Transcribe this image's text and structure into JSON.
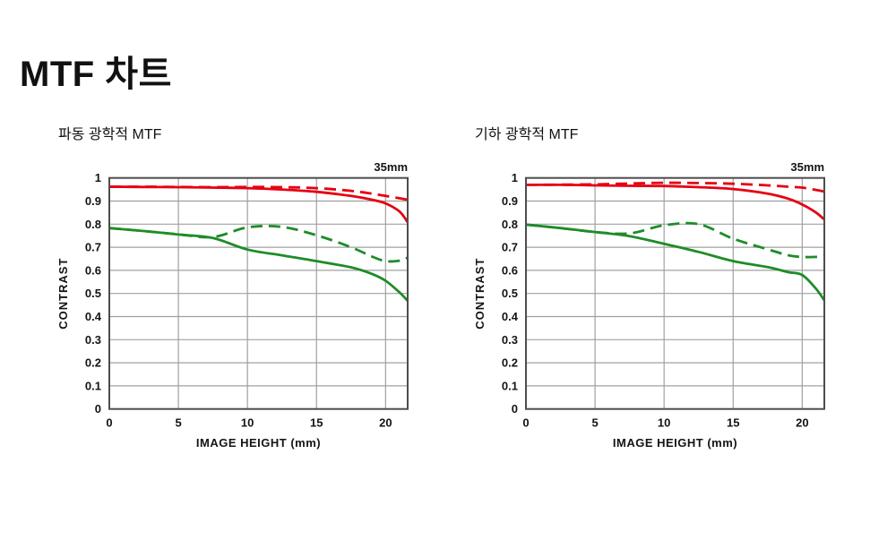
{
  "page": {
    "title": "MTF 차트"
  },
  "colors": {
    "red": "#e60012",
    "green": "#1e8c28",
    "grid": "#a0a0a0",
    "axis_border": "#4d4d4d",
    "text": "#141414"
  },
  "chart_data": [
    {
      "type": "line",
      "title": "파동 광학적 MTF",
      "corner_label": "35mm",
      "xlabel": "IMAGE HEIGHT (mm)",
      "ylabel": "CONTRAST",
      "xlim": [
        0,
        21.6
      ],
      "ylim": [
        0,
        1
      ],
      "xticks": [
        0,
        5,
        10,
        15,
        20
      ],
      "ytick_step": 0.1,
      "grid": true,
      "legend": "none",
      "x": [
        0,
        2.5,
        5,
        7.5,
        10,
        12.5,
        15,
        17.5,
        19,
        20,
        21,
        21.6
      ],
      "series": [
        {
          "name": "red-solid",
          "color_key": "red",
          "dash": false,
          "values": [
            0.962,
            0.961,
            0.96,
            0.958,
            0.956,
            0.95,
            0.94,
            0.922,
            0.906,
            0.89,
            0.855,
            0.808
          ]
        },
        {
          "name": "red-dashed",
          "color_key": "red",
          "dash": true,
          "values": [
            0.962,
            0.962,
            0.961,
            0.96,
            0.961,
            0.96,
            0.956,
            0.944,
            0.932,
            0.922,
            0.912,
            0.906
          ]
        },
        {
          "name": "green-solid",
          "color_key": "green",
          "dash": false,
          "values": [
            0.783,
            0.77,
            0.755,
            0.74,
            0.69,
            0.665,
            0.64,
            0.613,
            0.585,
            0.555,
            0.505,
            0.468
          ]
        },
        {
          "name": "green-dashed",
          "color_key": "green",
          "dash": true,
          "values": [
            0.783,
            0.77,
            0.756,
            0.744,
            0.786,
            0.788,
            0.752,
            0.7,
            0.66,
            0.64,
            0.642,
            0.655
          ]
        }
      ]
    },
    {
      "type": "line",
      "title": "기하 광학적 MTF",
      "corner_label": "35mm",
      "xlabel": "IMAGE HEIGHT (mm)",
      "ylabel": "CONTRAST",
      "xlim": [
        0,
        21.6
      ],
      "ylim": [
        0,
        1
      ],
      "xticks": [
        0,
        5,
        10,
        15,
        20
      ],
      "ytick_step": 0.1,
      "grid": true,
      "legend": "none",
      "x": [
        0,
        2.5,
        5,
        7.5,
        10,
        12.5,
        15,
        17.5,
        19,
        20,
        21,
        21.6
      ],
      "series": [
        {
          "name": "red-solid",
          "color_key": "red",
          "dash": false,
          "values": [
            0.97,
            0.97,
            0.968,
            0.966,
            0.965,
            0.96,
            0.952,
            0.932,
            0.91,
            0.885,
            0.85,
            0.82
          ]
        },
        {
          "name": "red-dashed",
          "color_key": "red",
          "dash": true,
          "values": [
            0.97,
            0.971,
            0.972,
            0.976,
            0.979,
            0.978,
            0.975,
            0.968,
            0.962,
            0.958,
            0.948,
            0.941
          ]
        },
        {
          "name": "green-solid",
          "color_key": "green",
          "dash": false,
          "values": [
            0.798,
            0.783,
            0.766,
            0.748,
            0.715,
            0.68,
            0.64,
            0.614,
            0.592,
            0.58,
            0.52,
            0.47
          ]
        },
        {
          "name": "green-dashed",
          "color_key": "green",
          "dash": true,
          "values": [
            0.798,
            0.783,
            0.766,
            0.76,
            0.795,
            0.8,
            0.737,
            0.691,
            0.665,
            0.658,
            0.658,
            0.664
          ]
        }
      ]
    }
  ]
}
